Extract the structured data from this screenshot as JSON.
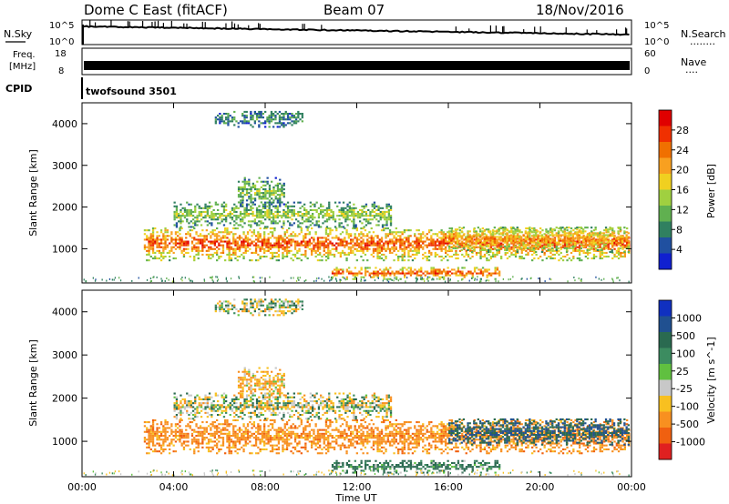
{
  "header": {
    "station": "Dome C East (fitACF)",
    "beam": "Beam 07",
    "date": "18/Nov/2016"
  },
  "sky_panel": {
    "left_label": "N.Sky",
    "right_label": "N.Search",
    "right_dots": "........",
    "left_ticks": [
      "10^5",
      "10^0"
    ],
    "right_ticks": [
      "10^5",
      "10^0"
    ]
  },
  "freq_panel": {
    "left_label_line1": "Freq.",
    "left_label_line2": "[MHz]",
    "right_label": "Nave",
    "right_dots": "....",
    "left_ticks": [
      "18",
      "8"
    ],
    "right_ticks": [
      "60",
      "0"
    ]
  },
  "cpid": {
    "label": "CPID",
    "value": "twofsound 3501"
  },
  "power_panel": {
    "ylabel": "Slant Range [km]",
    "yticks": [
      "4000",
      "3000",
      "2000",
      "1000"
    ],
    "colorbar_label": "Power [dB]",
    "colorbar_ticks": [
      "28",
      "24",
      "20",
      "16",
      "12",
      "8",
      "4"
    ],
    "colorbar_colors": [
      "#e00000",
      "#f03000",
      "#f07000",
      "#f8a020",
      "#f0d020",
      "#a0d040",
      "#60b050",
      "#308060",
      "#2050a0",
      "#1020d0"
    ]
  },
  "velocity_panel": {
    "ylabel": "Slant Range [km]",
    "yticks": [
      "4000",
      "3000",
      "2000",
      "1000"
    ],
    "colorbar_label": "Velocity [m s^-1]",
    "colorbar_ticks": [
      "1000",
      "500",
      "100",
      "25",
      "-25",
      "-100",
      "-500",
      "-1000"
    ],
    "colorbar_colors": [
      "#1030c0",
      "#205090",
      "#2a6a50",
      "#3c8c60",
      "#60c040",
      "#c8c8c8",
      "#f8c020",
      "#f89020",
      "#f06010",
      "#e02020"
    ]
  },
  "x_axis": {
    "ticks": [
      "00:00",
      "04:00",
      "08:00",
      "12:00",
      "16:00",
      "20:00",
      "00:00"
    ],
    "label": "Time UT"
  },
  "chart_data": {
    "type": "heatmap",
    "title": "Dome C East (fitACF)",
    "beam": "Beam 07",
    "date": "18/Nov/2016",
    "x_unit": "Time UT (hours)",
    "xlim": [
      0,
      24
    ],
    "ylim": [
      180,
      4500
    ],
    "xlabel": "Time UT",
    "ylabel": "Slant Range [km]",
    "power_range_db": [
      0,
      30
    ],
    "velocity_range": [
      -1000,
      1000
    ],
    "scatter_regions": [
      {
        "name": "main_E_band",
        "t_start": 2.7,
        "t_end": 23.9,
        "range_low": 700,
        "range_high": 1500,
        "power_db": 26,
        "velocity": -200
      },
      {
        "name": "upper_layer",
        "t_start": 4.0,
        "t_end": 13.5,
        "range_low": 1500,
        "range_high": 2100,
        "power_db": 14,
        "velocity": 0
      },
      {
        "name": "high_patch",
        "t_start": 6.8,
        "t_end": 8.8,
        "range_low": 2000,
        "range_high": 2700,
        "power_db": 12,
        "velocity": -100
      },
      {
        "name": "far_patch",
        "t_start": 5.8,
        "t_end": 9.6,
        "range_low": 3900,
        "range_high": 4300,
        "power_db": 8,
        "velocity": 0
      },
      {
        "name": "near_band",
        "t_start": 10.9,
        "t_end": 18.2,
        "range_low": 250,
        "range_high": 550,
        "power_db": 26,
        "velocity": 150
      },
      {
        "name": "evening_band",
        "t_start": 16.0,
        "t_end": 23.9,
        "range_low": 900,
        "range_high": 1500,
        "power_db": 22,
        "velocity": 300
      }
    ]
  }
}
